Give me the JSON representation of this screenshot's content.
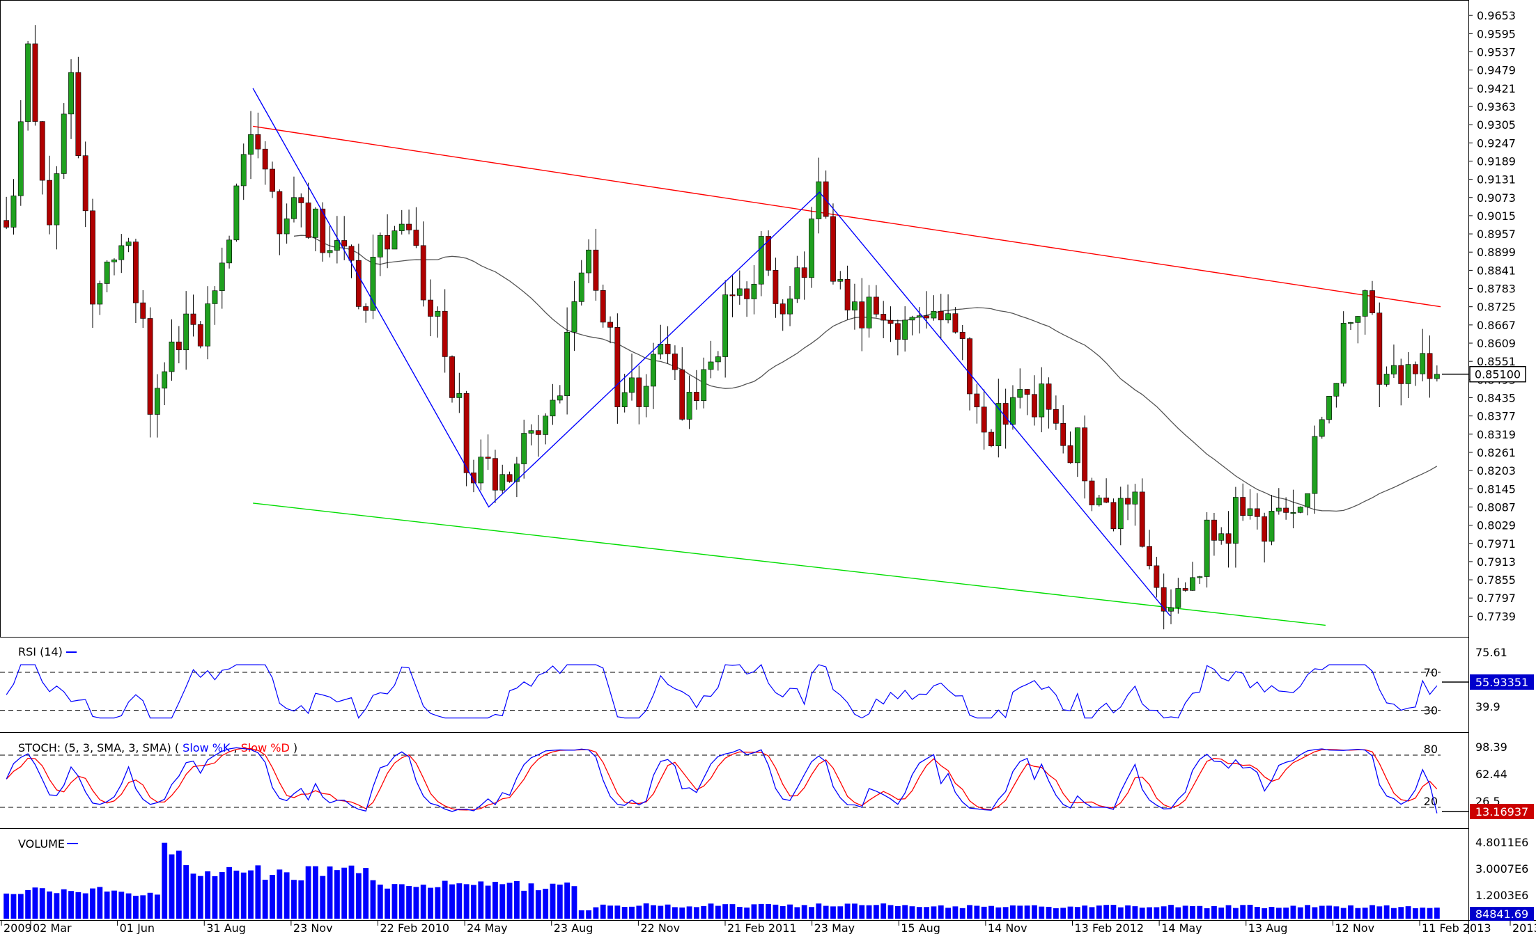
{
  "chart_data": {
    "type": "candlestick",
    "price_panel": {
      "y_ticks": [
        "0.9653",
        "0.9595",
        "0.9537",
        "0.9479",
        "0.9421",
        "0.9363",
        "0.9305",
        "0.9247",
        "0.9189",
        "0.9131",
        "0.9073",
        "0.9015",
        "0.8957",
        "0.8899",
        "0.8841",
        "0.8783",
        "0.8725",
        "0.8667",
        "0.8609",
        "0.8551",
        "0.8493",
        "0.8435",
        "0.8377",
        "0.8319",
        "0.8261",
        "0.8203",
        "0.8145",
        "0.8087",
        "0.8029",
        "0.7971",
        "0.7913",
        "0.7855",
        "0.7797",
        "0.7739"
      ],
      "ylim": [
        0.768,
        0.968
      ],
      "current_price_label": "0.85100",
      "current_price": 0.851,
      "colors": {
        "up": "#1fa01f",
        "down": "#b00000",
        "wick": "#000000"
      },
      "trendlines": [
        {
          "color": "#ff0000",
          "from": [
            0.0,
            0.9421
          ],
          "to": [
            1.0,
            0.8725
          ]
        },
        {
          "color": "#00dd00",
          "from": [
            0.0,
            0.819
          ],
          "to": [
            0.92,
            0.771
          ]
        }
      ],
      "zigzag": {
        "color": "#0000ff",
        "points": [
          [
            0.174,
            0.9421
          ],
          [
            0.338,
            0.8087
          ],
          [
            0.568,
            0.909
          ],
          [
            0.812,
            0.774
          ]
        ]
      },
      "moving_average": {
        "color": "#555555"
      }
    },
    "rsi": {
      "label": "RSI (14)",
      "levels": [
        "70",
        "30"
      ],
      "level_values": [
        70,
        30
      ],
      "right_ticks": [
        "75.61",
        "39.9"
      ],
      "current_value_label": "55.93351",
      "color": "#0000ff"
    },
    "stoch": {
      "label_prefix": "STOCH: (5, 3, SMA, 3, SMA)",
      "label_k": "Slow %K",
      "label_d": "Slow %D",
      "levels": [
        "80",
        "20"
      ],
      "level_values": [
        80,
        20
      ],
      "right_ticks": [
        "98.39",
        "62.44",
        "26.5"
      ],
      "current_value_label": "13.16937",
      "color_k": "#0000ff",
      "color_d": "#ff0000"
    },
    "volume": {
      "label": "VOLUME",
      "right_ticks": [
        "4.8011E6",
        "3.0007E6",
        "1.2003E6"
      ],
      "current_value_label": "84841.69",
      "color": "#0000ff"
    },
    "x_ticks": [
      "2009",
      "02 Mar",
      "01 Jun",
      "31 Aug",
      "23 Nov",
      "22 Feb 2010",
      "24 May",
      "23 Aug",
      "22 Nov",
      "21 Feb 2011",
      "23 May",
      "15 Aug",
      "14 Nov",
      "13 Feb 2012",
      "14 May",
      "13 Aug",
      "12 Nov",
      "11 Feb 2013",
      "2013"
    ],
    "anchors": [
      [
        0.0,
        0.9
      ],
      [
        0.015,
        0.95
      ],
      [
        0.03,
        0.9
      ],
      [
        0.045,
        0.94
      ],
      [
        0.06,
        0.88
      ],
      [
        0.085,
        0.895
      ],
      [
        0.1,
        0.845
      ],
      [
        0.12,
        0.86
      ],
      [
        0.15,
        0.875
      ],
      [
        0.163,
        0.927
      ],
      [
        0.174,
        0.93
      ],
      [
        0.19,
        0.905
      ],
      [
        0.22,
        0.895
      ],
      [
        0.25,
        0.873
      ],
      [
        0.27,
        0.905
      ],
      [
        0.3,
        0.87
      ],
      [
        0.325,
        0.82
      ],
      [
        0.338,
        0.815
      ],
      [
        0.36,
        0.83
      ],
      [
        0.375,
        0.825
      ],
      [
        0.395,
        0.865
      ],
      [
        0.41,
        0.89
      ],
      [
        0.425,
        0.85
      ],
      [
        0.445,
        0.84
      ],
      [
        0.46,
        0.86
      ],
      [
        0.475,
        0.84
      ],
      [
        0.49,
        0.855
      ],
      [
        0.51,
        0.88
      ],
      [
        0.53,
        0.89
      ],
      [
        0.545,
        0.87
      ],
      [
        0.557,
        0.885
      ],
      [
        0.568,
        0.905
      ],
      [
        0.585,
        0.878
      ],
      [
        0.605,
        0.87
      ],
      [
        0.625,
        0.865
      ],
      [
        0.645,
        0.875
      ],
      [
        0.665,
        0.86
      ],
      [
        0.685,
        0.835
      ],
      [
        0.705,
        0.835
      ],
      [
        0.72,
        0.845
      ],
      [
        0.745,
        0.83
      ],
      [
        0.76,
        0.81
      ],
      [
        0.79,
        0.805
      ],
      [
        0.805,
        0.785
      ],
      [
        0.812,
        0.779
      ],
      [
        0.83,
        0.79
      ],
      [
        0.845,
        0.8
      ],
      [
        0.865,
        0.805
      ],
      [
        0.885,
        0.805
      ],
      [
        0.905,
        0.815
      ],
      [
        0.92,
        0.83
      ],
      [
        0.935,
        0.865
      ],
      [
        0.95,
        0.87
      ],
      [
        0.96,
        0.855
      ],
      [
        0.97,
        0.849
      ],
      [
        0.98,
        0.851
      ]
    ]
  }
}
